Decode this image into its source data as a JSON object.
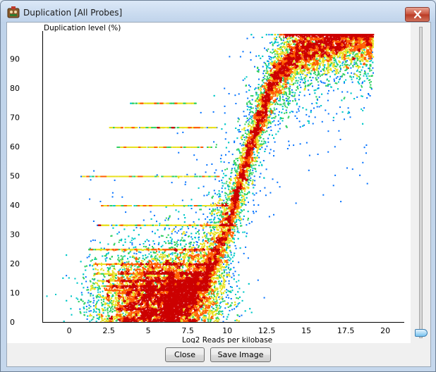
{
  "window": {
    "title": "Duplication [All Probes]",
    "icon": "seqmonk-app-icon",
    "close_icon": "close-icon"
  },
  "buttons": {
    "close_label": "Close",
    "save_label": "Save Image"
  },
  "chart_data": {
    "type": "scatter",
    "title": "",
    "xlabel": "Log2 Reads per kilobase",
    "ylabel": "Duplication level (%)",
    "xlim": [
      -1.7,
      21.2
    ],
    "ylim": [
      0,
      99.5
    ],
    "xticks": [
      0,
      2.5,
      5,
      7.5,
      10,
      12.5,
      15,
      17.5,
      20
    ],
    "xtick_labels": [
      "0",
      "2.5",
      "5",
      "7.5",
      "10",
      "12.5",
      "15",
      "17.5",
      "20"
    ],
    "yticks": [
      0,
      10,
      20,
      30,
      40,
      50,
      60,
      70,
      80,
      90
    ],
    "ytick_labels": [
      "0",
      "10",
      "20",
      "30",
      "40",
      "50",
      "60",
      "70",
      "80",
      "90"
    ],
    "grid": false,
    "legend": "none",
    "color_scale": [
      "#0000cc",
      "#0070ff",
      "#00c8c8",
      "#30d060",
      "#e8e020",
      "#ff6000",
      "#cc0000"
    ],
    "density_trend": [
      {
        "x": 8.0,
        "y": 12
      },
      {
        "x": 9.0,
        "y": 20
      },
      {
        "x": 10.0,
        "y": 33
      },
      {
        "x": 11.0,
        "y": 52
      },
      {
        "x": 12.0,
        "y": 70
      },
      {
        "x": 13.0,
        "y": 84
      },
      {
        "x": 14.5,
        "y": 93
      },
      {
        "x": 17.5,
        "y": 98
      }
    ],
    "horizontal_bands": [
      {
        "y": 50,
        "x_start": 0.7,
        "x_end": 9.5
      },
      {
        "y": 33.3,
        "x_start": 1.7,
        "x_end": 10.5
      },
      {
        "y": 25,
        "x_start": 1.2,
        "x_end": 9.5
      },
      {
        "y": 20,
        "x_start": 1.5,
        "x_end": 9.0
      },
      {
        "y": 66.7,
        "x_start": 2.5,
        "x_end": 9.3
      },
      {
        "y": 75,
        "x_start": 3.8,
        "x_end": 8.0
      },
      {
        "y": 60,
        "x_start": 3.0,
        "x_end": 9.0
      },
      {
        "y": 40,
        "x_start": 2.0,
        "x_end": 10.0
      },
      {
        "y": 16.7,
        "x_start": 1.5,
        "x_end": 9.0
      },
      {
        "y": 14.3,
        "x_start": 1.8,
        "x_end": 9.0
      },
      {
        "y": 12.5,
        "x_start": 2.0,
        "x_end": 9.0
      },
      {
        "y": 11.1,
        "x_start": 2.2,
        "x_end": 9.0
      },
      {
        "y": 0,
        "x_start": -1.5,
        "x_end": 7.5
      }
    ]
  }
}
